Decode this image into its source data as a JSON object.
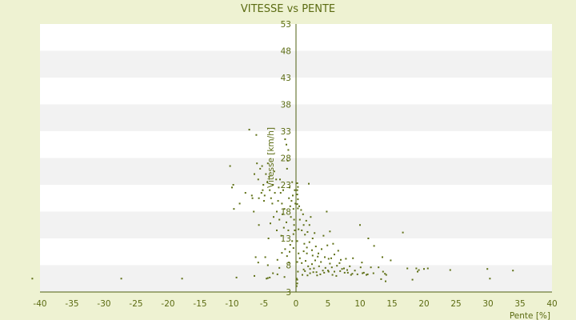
{
  "colors": {
    "background": "#eef2d2",
    "band_light": "#ffffff",
    "band_dark": "#f2f2f2",
    "axis": "#4f6010",
    "text": "#5b6b12",
    "points": "#5f7016"
  },
  "chart_data": {
    "type": "scatter",
    "title": "VITESSE vs PENTE",
    "xlabel": "Pente [%]",
    "ylabel": "Vitesse [km/h]",
    "xlim": [
      -40,
      40
    ],
    "ylim": [
      3,
      53
    ],
    "x_ticks": [
      -40,
      -35,
      -30,
      -25,
      -20,
      -15,
      -10,
      -5,
      0,
      5,
      10,
      15,
      20,
      25,
      30,
      35,
      40
    ],
    "y_ticks": [
      3,
      8,
      13,
      18,
      23,
      28,
      33,
      38,
      43,
      48,
      53
    ],
    "x_tick_labels": [
      "-40",
      "-35",
      "-30",
      "-25",
      "-20",
      "-15",
      "-10",
      "-5",
      "0",
      "5",
      "10",
      "15",
      "20",
      "25",
      "30",
      "35",
      "40"
    ],
    "y_tick_labels": [
      "3",
      "8",
      "13",
      "18",
      "23",
      "28",
      "33",
      "38",
      "43",
      "48",
      "53"
    ],
    "grid": "alternating horizontal bands",
    "legend": "none",
    "points": [
      [
        -41.2,
        5.5
      ],
      [
        -27.3,
        5.5
      ],
      [
        -17.8,
        5.5
      ],
      [
        -9.3,
        5.7
      ],
      [
        -10.3,
        26.5
      ],
      [
        -10,
        22.5
      ],
      [
        -9.8,
        23
      ],
      [
        -9.7,
        18.5
      ],
      [
        -8.8,
        19.5
      ],
      [
        -7.9,
        21.5
      ],
      [
        -7.3,
        33.3
      ],
      [
        -6.2,
        32.3
      ],
      [
        -6.9,
        21
      ],
      [
        -6.6,
        18
      ],
      [
        -6.8,
        20.5
      ],
      [
        -6.5,
        25
      ],
      [
        -6.1,
        27
      ],
      [
        -5.9,
        24
      ],
      [
        -5.6,
        26
      ],
      [
        -5.3,
        26.5
      ],
      [
        -5.1,
        23
      ],
      [
        -5.8,
        20.5
      ],
      [
        -5.4,
        21.5
      ],
      [
        -5.2,
        22
      ],
      [
        -5,
        20
      ],
      [
        -4.9,
        21
      ],
      [
        -4.7,
        25
      ],
      [
        -4.5,
        23.5
      ],
      [
        -4.4,
        27
      ],
      [
        -4.2,
        24.5
      ],
      [
        -4.1,
        22
      ],
      [
        -3.9,
        20.5
      ],
      [
        -3.7,
        19.5
      ],
      [
        -3.6,
        23
      ],
      [
        -3.4,
        25.5
      ],
      [
        -3.3,
        21.5
      ],
      [
        -3.1,
        24
      ],
      [
        -3,
        18
      ],
      [
        -2.8,
        20
      ],
      [
        -2.7,
        22.5
      ],
      [
        -2.5,
        24
      ],
      [
        -2.4,
        21.5
      ],
      [
        -2.2,
        19.5
      ],
      [
        -2.1,
        17.5
      ],
      [
        -2,
        22
      ],
      [
        -1.8,
        18.5
      ],
      [
        -1.7,
        31.5
      ],
      [
        -1.5,
        30.5
      ],
      [
        -1.4,
        26
      ],
      [
        -1.3,
        27.5
      ],
      [
        -1.2,
        29.5
      ],
      [
        -1.1,
        20.5
      ],
      [
        -1,
        22.5
      ],
      [
        -0.9,
        19
      ],
      [
        -0.8,
        17
      ],
      [
        -0.7,
        20
      ],
      [
        -0.6,
        23.5
      ],
      [
        -0.5,
        21
      ],
      [
        -0.4,
        18.5
      ],
      [
        -0.3,
        16.5
      ],
      [
        -0.3,
        15.5
      ],
      [
        -0.2,
        22
      ],
      [
        -0.1,
        19.5
      ],
      [
        -0.2,
        14.5
      ],
      [
        -0.4,
        13.8
      ],
      [
        -0.6,
        12.5
      ],
      [
        -0.9,
        11.8
      ],
      [
        -1.2,
        14.5
      ],
      [
        -1.5,
        16
      ],
      [
        -1.9,
        15
      ],
      [
        -2.3,
        13.5
      ],
      [
        -2.6,
        16.5
      ],
      [
        -3,
        14.5
      ],
      [
        -3.5,
        17
      ],
      [
        -4,
        15.8
      ],
      [
        -4.3,
        13
      ],
      [
        -5.8,
        15.5
      ],
      [
        -6.3,
        9.5
      ],
      [
        -5.9,
        8.5
      ],
      [
        -6.5,
        6
      ],
      [
        -4.8,
        9.5
      ],
      [
        -4.4,
        8
      ],
      [
        -3.6,
        6.5
      ],
      [
        -2.9,
        9
      ],
      [
        -2.2,
        10.3
      ],
      [
        -1.7,
        11
      ],
      [
        -1.4,
        9.7
      ],
      [
        -1,
        10.5
      ],
      [
        -0.4,
        11.2
      ],
      [
        -2.6,
        7.5
      ],
      [
        -4.1,
        5.7
      ],
      [
        -4.6,
        5.5
      ],
      [
        -4.4,
        5.6
      ],
      [
        -2.9,
        6.3
      ],
      [
        -1.8,
        5.8
      ],
      [
        -1.1,
        8.5
      ],
      [
        0.1,
        4.1
      ],
      [
        0.2,
        4.6
      ],
      [
        0.2,
        5.3
      ],
      [
        0.1,
        5.5
      ],
      [
        0.3,
        6.8
      ],
      [
        0.2,
        8.6
      ],
      [
        0.4,
        10.2
      ],
      [
        0.2,
        12.5
      ],
      [
        0.4,
        14.7
      ],
      [
        0.6,
        16.5
      ],
      [
        0.8,
        18.3
      ],
      [
        0.5,
        19
      ],
      [
        1.1,
        17.5
      ],
      [
        0.9,
        14.5
      ],
      [
        1.2,
        15.5
      ],
      [
        1.4,
        13.7
      ],
      [
        1.6,
        16.3
      ],
      [
        1.8,
        14.2
      ],
      [
        2.1,
        15.5
      ],
      [
        2.3,
        17
      ],
      [
        2.6,
        13
      ],
      [
        2.9,
        14
      ],
      [
        2,
        23.2
      ],
      [
        1.3,
        12
      ],
      [
        1.7,
        11.3
      ],
      [
        2.1,
        12.3
      ],
      [
        2.5,
        10.8
      ],
      [
        3.1,
        11.5
      ],
      [
        3.5,
        10.2
      ],
      [
        4,
        11
      ],
      [
        4.5,
        9.5
      ],
      [
        4.8,
        18
      ],
      [
        4.3,
        13.5
      ],
      [
        5.3,
        14.3
      ],
      [
        5.8,
        12
      ],
      [
        4.9,
        11.7
      ],
      [
        6.6,
        10.7
      ],
      [
        0.6,
        9.3
      ],
      [
        0.9,
        8.4
      ],
      [
        1.2,
        7.2
      ],
      [
        1.5,
        8.8
      ],
      [
        1.9,
        7.8
      ],
      [
        2.2,
        6.5
      ],
      [
        2.5,
        8.2
      ],
      [
        2.8,
        7.4
      ],
      [
        3.2,
        6.7
      ],
      [
        3.6,
        7.8
      ],
      [
        3.9,
        8.6
      ],
      [
        4.2,
        7
      ],
      [
        4.6,
        7.5
      ],
      [
        5,
        7
      ],
      [
        5.3,
        8.3
      ],
      [
        5.6,
        7.6
      ],
      [
        6,
        6.8
      ],
      [
        6.4,
        7.9
      ],
      [
        6.8,
        8.4
      ],
      [
        7.2,
        7.3
      ],
      [
        7.6,
        6.6
      ],
      [
        8,
        7.1
      ],
      [
        8.4,
        7.8
      ],
      [
        8.8,
        6.4
      ],
      [
        9.2,
        7
      ],
      [
        9.6,
        6.3
      ],
      [
        10.1,
        7.6
      ],
      [
        10.6,
        6.6
      ],
      [
        11.2,
        6.3
      ],
      [
        12.1,
        6.5
      ],
      [
        1,
        6.2
      ],
      [
        1.4,
        6.9
      ],
      [
        1.8,
        6.1
      ],
      [
        2.2,
        7.3
      ],
      [
        2.7,
        6.7
      ],
      [
        3.3,
        6.1
      ],
      [
        3.8,
        6.3
      ],
      [
        4.4,
        6.6
      ],
      [
        5.1,
        6.8
      ],
      [
        5.7,
        6.2
      ],
      [
        6.3,
        6
      ],
      [
        6.9,
        6.9
      ],
      [
        7.5,
        7.4
      ],
      [
        8.1,
        6.6
      ],
      [
        8.6,
        6.2
      ],
      [
        1.2,
        10.6
      ],
      [
        1.7,
        10.2
      ],
      [
        2.6,
        9.8
      ],
      [
        3,
        8.9
      ],
      [
        3.4,
        9.6
      ],
      [
        5.1,
        9.2
      ],
      [
        5.5,
        9.3
      ],
      [
        7,
        9
      ],
      [
        6,
        10
      ],
      [
        8.9,
        9.3
      ],
      [
        7.8,
        9.2
      ],
      [
        10.3,
        8.5
      ],
      [
        10,
        15.5
      ],
      [
        11.3,
        13
      ],
      [
        12.2,
        11.6
      ],
      [
        13.5,
        9.5
      ],
      [
        14.8,
        8.9
      ],
      [
        16.7,
        14.1
      ],
      [
        17.4,
        7.4
      ],
      [
        18.8,
        7.4
      ],
      [
        19.2,
        7.1
      ],
      [
        20,
        7.3
      ],
      [
        20.6,
        7.4
      ],
      [
        24.1,
        7.1
      ],
      [
        29.9,
        7.3
      ],
      [
        33.9,
        7
      ],
      [
        19,
        6.8
      ],
      [
        13.6,
        6.8
      ],
      [
        11.7,
        7.6
      ],
      [
        12.9,
        7.6
      ],
      [
        13.9,
        6.4
      ],
      [
        18.2,
        5.3
      ],
      [
        30.3,
        5.5
      ],
      [
        14,
        5
      ],
      [
        10.4,
        6.5
      ],
      [
        11,
        6.2
      ],
      [
        13.3,
        5.4
      ],
      [
        14.1,
        6.2
      ],
      [
        0.2,
        21.2
      ],
      [
        0.2,
        22
      ],
      [
        0.3,
        22.6
      ],
      [
        0.2,
        23.3
      ],
      [
        0.3,
        20.3
      ],
      [
        0.2,
        19.4
      ],
      [
        0.3,
        18.6
      ]
    ]
  }
}
